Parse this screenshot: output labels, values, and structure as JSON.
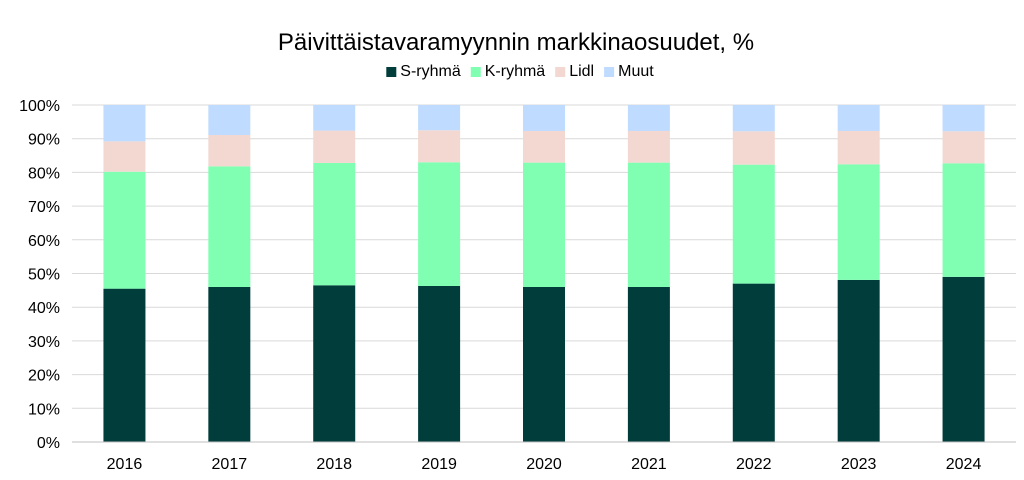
{
  "chart_data": {
    "type": "bar",
    "stacked": true,
    "title": "Päivittäistavaramyynnin markkinaosuudet, %",
    "xlabel": "",
    "ylabel": "",
    "ylim": [
      0,
      100
    ],
    "yticks": [
      "0%",
      "10%",
      "20%",
      "30%",
      "40%",
      "50%",
      "60%",
      "70%",
      "80%",
      "90%",
      "100%"
    ],
    "grid": true,
    "legend_position": "top",
    "categories": [
      "2016",
      "2017",
      "2018",
      "2019",
      "2020",
      "2021",
      "2022",
      "2023",
      "2024"
    ],
    "series": [
      {
        "name": "S-ryhmä",
        "color": "#003d3b",
        "values": [
          45.5,
          46.0,
          46.5,
          46.3,
          46.0,
          46.0,
          47.0,
          48.1,
          49.0
        ]
      },
      {
        "name": "K-ryhmä",
        "color": "#80ffb2",
        "values": [
          34.7,
          35.8,
          36.3,
          36.7,
          36.9,
          36.9,
          35.3,
          34.3,
          33.7
        ]
      },
      {
        "name": "Lidl",
        "color": "#f2d8d0",
        "values": [
          9.0,
          9.3,
          9.6,
          9.5,
          9.4,
          9.4,
          9.9,
          9.9,
          9.5
        ]
      },
      {
        "name": "Muut",
        "color": "#bfdbff",
        "values": [
          10.8,
          8.9,
          7.6,
          7.5,
          7.7,
          7.7,
          7.8,
          7.7,
          7.8
        ]
      }
    ]
  }
}
